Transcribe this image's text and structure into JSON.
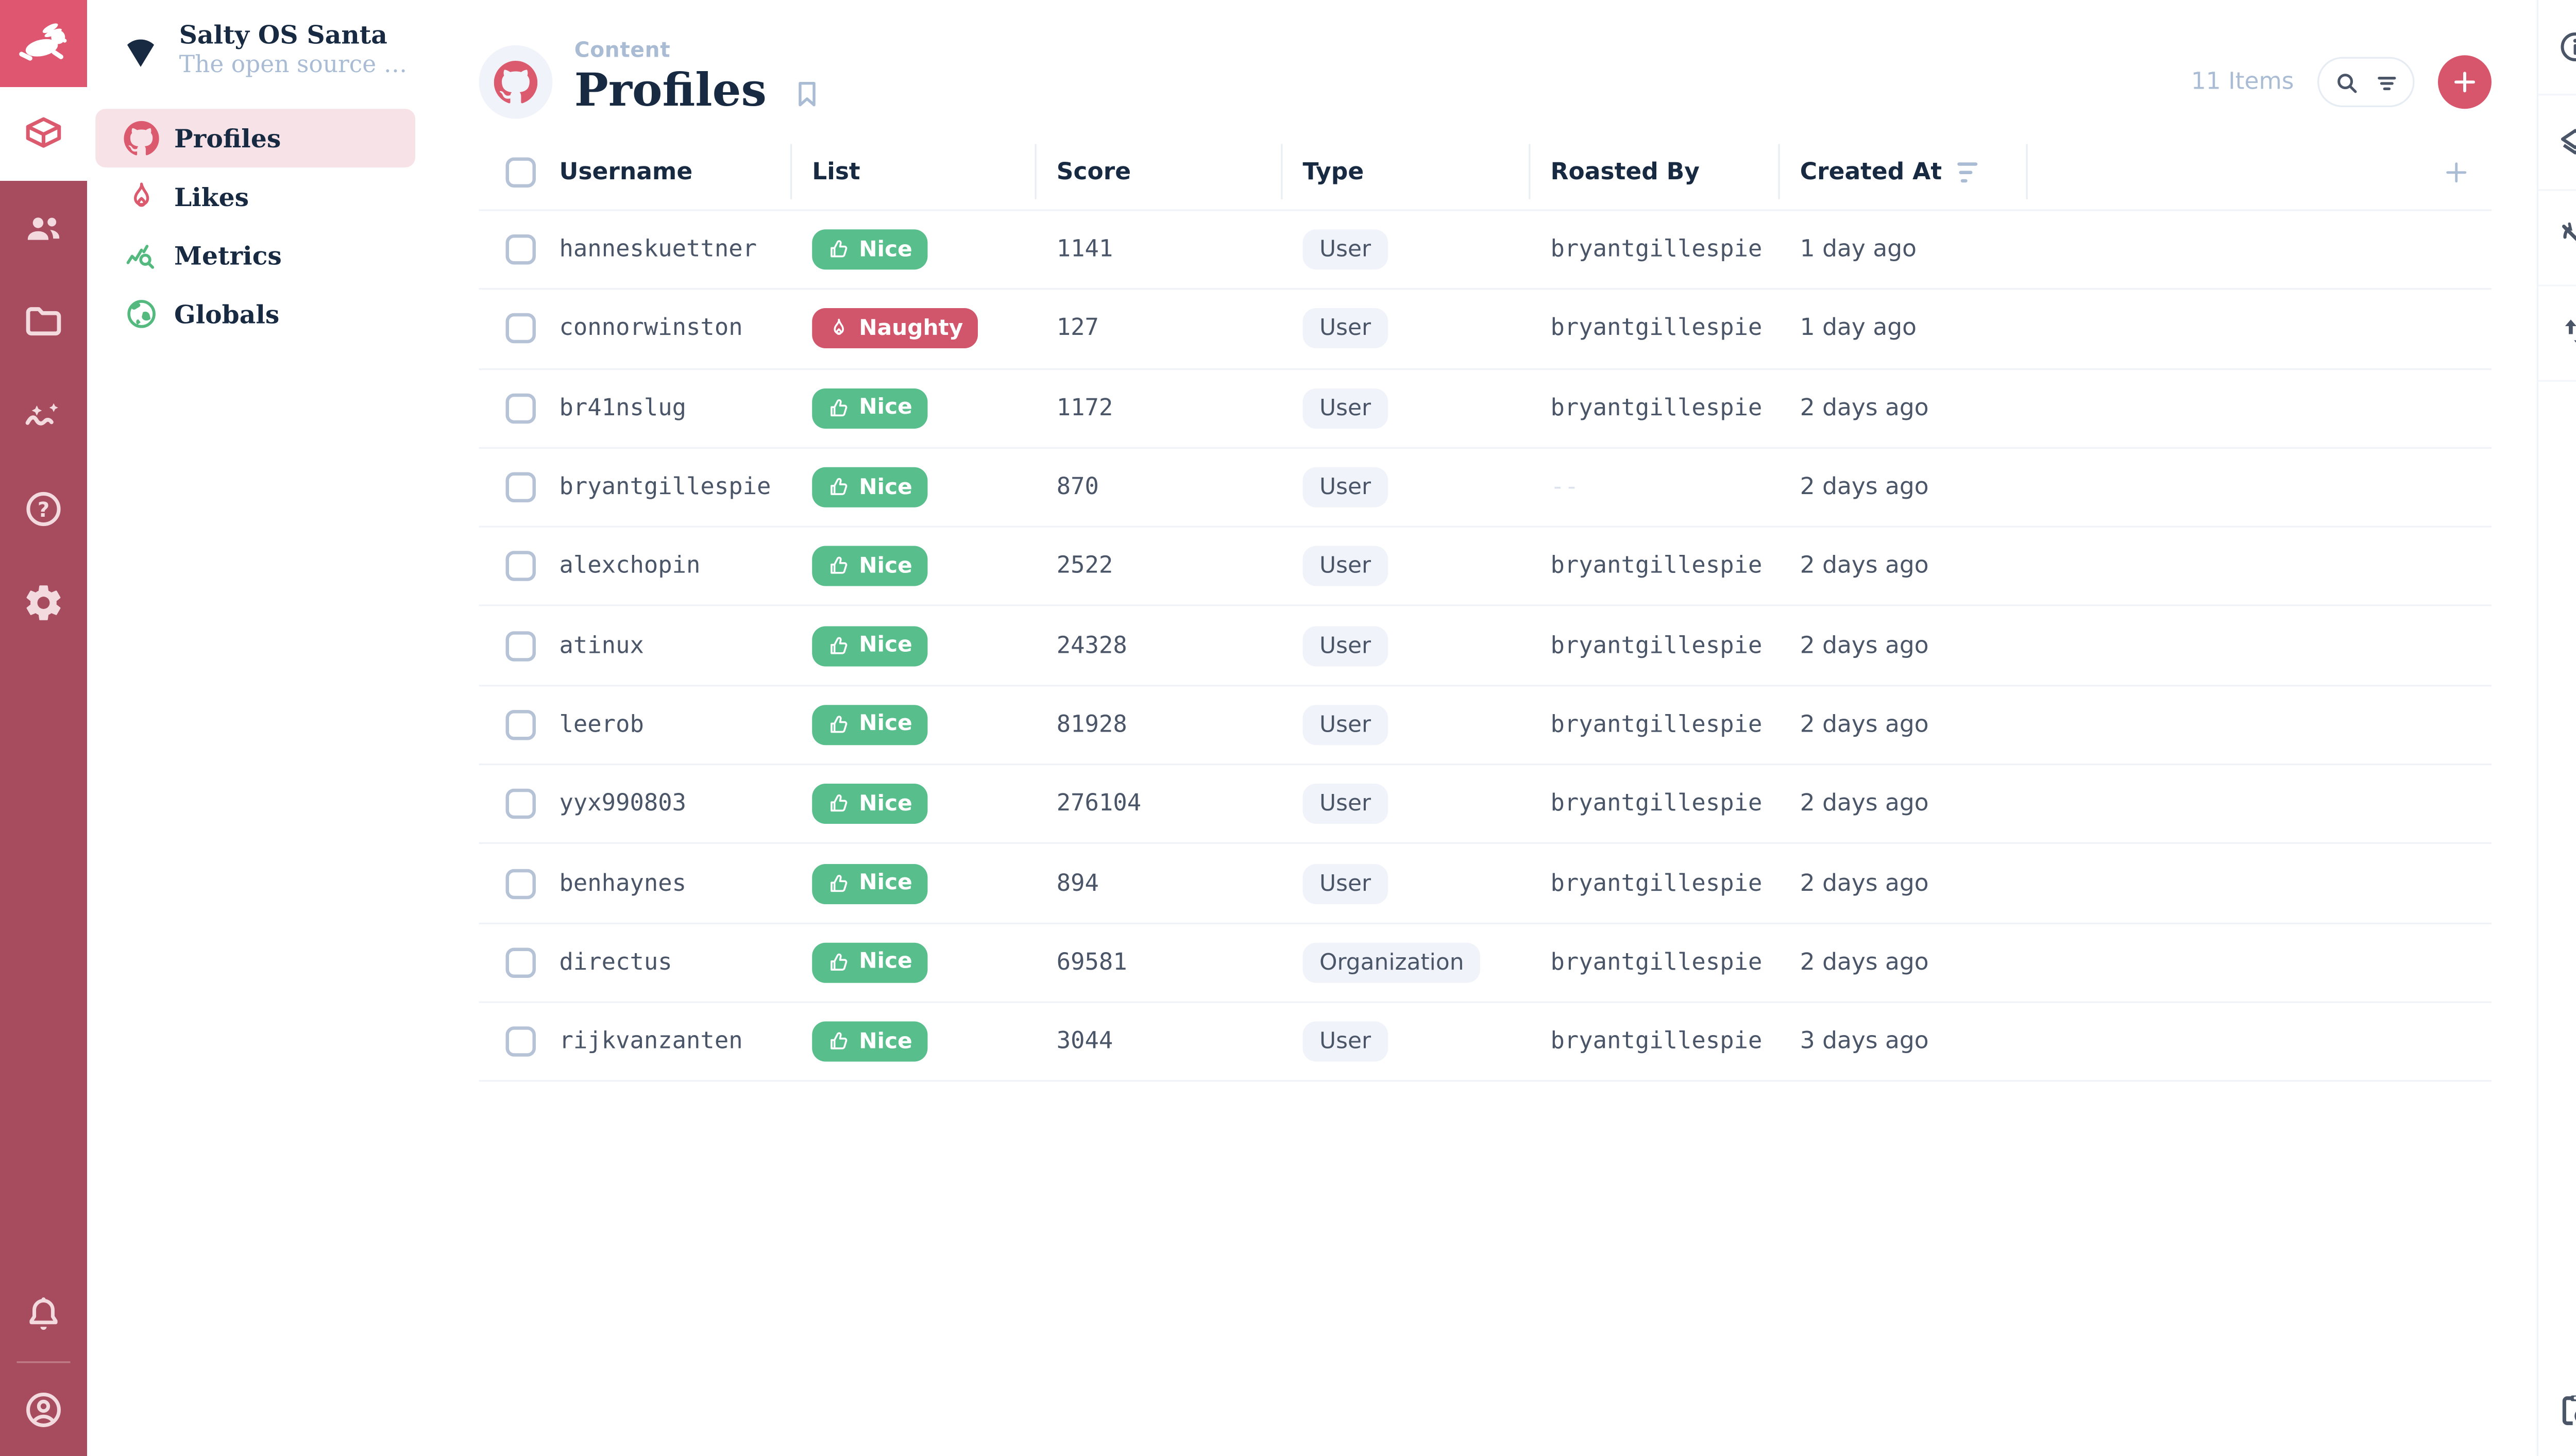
{
  "project": {
    "name": "Salty OS Santa",
    "subtitle": "The open source naug..."
  },
  "nav": {
    "items": [
      {
        "label": "Profiles",
        "icon": "github-octocat-icon",
        "active": true
      },
      {
        "label": "Likes",
        "icon": "flame-icon",
        "active": false
      },
      {
        "label": "Metrics",
        "icon": "query-stats-icon",
        "active": false
      },
      {
        "label": "Globals",
        "icon": "globe-icon",
        "active": false
      }
    ]
  },
  "module_bar": {
    "icons": [
      "rabbit-logo-icon",
      "box-module-icon",
      "users-module-icon",
      "folder-module-icon",
      "insights-module-icon",
      "help-module-icon",
      "settings-module-icon",
      "bell-icon",
      "account-circle-icon"
    ]
  },
  "header": {
    "breadcrumb": "Content",
    "title": "Profiles",
    "item_count": "11 Items",
    "icons": [
      "github-octocat-icon",
      "bookmark-icon",
      "search-icon",
      "filter-icon",
      "plus-icon"
    ]
  },
  "right_rail": {
    "icons": [
      "info-icon",
      "layers-icon",
      "sync-disabled-icon",
      "import-export-icon",
      "clipboard-clock-icon"
    ]
  },
  "table": {
    "columns": [
      "Username",
      "List",
      "Score",
      "Type",
      "Roasted By",
      "Created At"
    ],
    "sorted_column": "Created At",
    "badge_icons": {
      "nice": "thumbs-up-icon",
      "naughty": "flame-icon"
    },
    "rows": [
      {
        "username": "hanneskuettner",
        "list": "Nice",
        "list_variant": "nice",
        "score": "1141",
        "type": "User",
        "roasted_by": "bryantgillespie",
        "created_at": "1 day ago"
      },
      {
        "username": "connorwinston",
        "list": "Naughty",
        "list_variant": "naughty",
        "score": "127",
        "type": "User",
        "roasted_by": "bryantgillespie",
        "created_at": "1 day ago"
      },
      {
        "username": "br41nslug",
        "list": "Nice",
        "list_variant": "nice",
        "score": "1172",
        "type": "User",
        "roasted_by": "bryantgillespie",
        "created_at": "2 days ago"
      },
      {
        "username": "bryantgillespie",
        "list": "Nice",
        "list_variant": "nice",
        "score": "870",
        "type": "User",
        "roasted_by": "--",
        "created_at": "2 days ago"
      },
      {
        "username": "alexchopin",
        "list": "Nice",
        "list_variant": "nice",
        "score": "2522",
        "type": "User",
        "roasted_by": "bryantgillespie",
        "created_at": "2 days ago"
      },
      {
        "username": "atinux",
        "list": "Nice",
        "list_variant": "nice",
        "score": "24328",
        "type": "User",
        "roasted_by": "bryantgillespie",
        "created_at": "2 days ago"
      },
      {
        "username": "leerob",
        "list": "Nice",
        "list_variant": "nice",
        "score": "81928",
        "type": "User",
        "roasted_by": "bryantgillespie",
        "created_at": "2 days ago"
      },
      {
        "username": "yyx990803",
        "list": "Nice",
        "list_variant": "nice",
        "score": "276104",
        "type": "User",
        "roasted_by": "bryantgillespie",
        "created_at": "2 days ago"
      },
      {
        "username": "benhaynes",
        "list": "Nice",
        "list_variant": "nice",
        "score": "894",
        "type": "User",
        "roasted_by": "bryantgillespie",
        "created_at": "2 days ago"
      },
      {
        "username": "directus",
        "list": "Nice",
        "list_variant": "nice",
        "score": "69581",
        "type": "Organization",
        "roasted_by": "bryantgillespie",
        "created_at": "2 days ago"
      },
      {
        "username": "rijkvanzanten",
        "list": "Nice",
        "list_variant": "nice",
        "score": "3044",
        "type": "User",
        "roasted_by": "bryantgillespie",
        "created_at": "3 days ago"
      }
    ]
  },
  "colors": {
    "accent_red": "#D8566C",
    "module_bar_maroon": "#A74B5E",
    "logo_red": "#DF5670",
    "active_nav_pink": "#F7E3E7",
    "navy_text": "#172A41",
    "slate_text": "#4A5568",
    "muted_blue": "#A9BCD4",
    "nice_green": "#57BE8C",
    "naughty_red": "#D2566B",
    "pill_gray": "#F0F3F9"
  }
}
